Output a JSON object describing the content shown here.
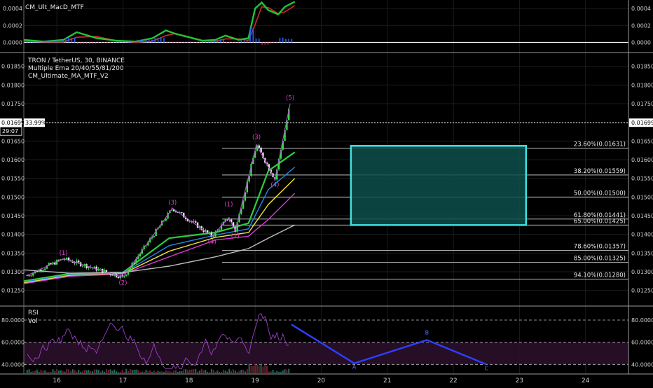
{
  "chart_data": {
    "type": "line",
    "panels": {
      "macd": {
        "title": "CM_Ult_MacD_MTF",
        "yticks": [
          "0.0004",
          "0.0002",
          "0.0000"
        ],
        "ylim": [
          -0.00012,
          0.0005
        ]
      },
      "price": {
        "title": "TRON / TetherUS, 30, BINANCE",
        "indicators": [
          "Multiple Ema 20/40/55/81/200",
          "CM_Ultimate_MA_MTF_V2"
        ],
        "yticks": [
          "0.01850",
          "0.01800",
          "0.01750",
          "0.01700",
          "0.01650",
          "0.01600",
          "0.01550",
          "0.01500",
          "0.01450",
          "0.01400",
          "0.01350",
          "0.01300",
          "0.01250"
        ],
        "ylim": [
          0.0121,
          0.01885
        ],
        "last_price": "0.01699",
        "last_change": "33.99%",
        "countdown": "29:07",
        "fib_levels": [
          {
            "label": "23.60%(0.01631)",
            "value": 0.01631
          },
          {
            "label": "38.20%(0.01559)",
            "value": 0.01559
          },
          {
            "label": "50.00%(0.01500)",
            "value": 0.015
          },
          {
            "label": "61.80%(0.01441)",
            "value": 0.01441
          },
          {
            "label": "65.00%(0.01425)",
            "value": 0.01425
          },
          {
            "label": "78.60%(0.01357)",
            "value": 0.01357
          },
          {
            "label": "85.00%(0.01325)",
            "value": 0.01325
          },
          {
            "label": "94.10%(0.01280)",
            "value": 0.0128
          }
        ],
        "target_zone": {
          "x_from": 20.45,
          "x_to": 23.1,
          "y_from": 0.01425,
          "y_to": 0.01637
        },
        "wave_labels": [
          {
            "text": "(1)",
            "x": 16.1,
            "y": 0.01345
          },
          {
            "text": "(2)",
            "x": 17.0,
            "y": 0.01265
          },
          {
            "text": "(3)",
            "x": 17.75,
            "y": 0.0148
          },
          {
            "text": "(4)",
            "x": 18.35,
            "y": 0.01375
          },
          {
            "text": "(1)",
            "x": 18.6,
            "y": 0.01475
          },
          {
            "text": "(2)",
            "x": 18.7,
            "y": 0.0139
          },
          {
            "text": "(3)",
            "x": 19.02,
            "y": 0.01655
          },
          {
            "text": "(4)",
            "x": 19.3,
            "y": 0.01528
          },
          {
            "text": "(5)",
            "x": 19.53,
            "y": 0.0176
          }
        ],
        "wave_path": [
          {
            "x": 15.55,
            "y": 0.0129
          },
          {
            "x": 16.1,
            "y": 0.01335
          },
          {
            "x": 17.0,
            "y": 0.01285
          },
          {
            "x": 17.75,
            "y": 0.0147
          },
          {
            "x": 18.35,
            "y": 0.01395
          },
          {
            "x": 18.6,
            "y": 0.01445
          },
          {
            "x": 18.7,
            "y": 0.0141
          },
          {
            "x": 19.02,
            "y": 0.0164
          },
          {
            "x": 19.3,
            "y": 0.01548
          },
          {
            "x": 19.53,
            "y": 0.0175
          }
        ],
        "ema_series": [
          {
            "color": "#2ecc40",
            "points": [
              [
                15.5,
                0.01275
              ],
              [
                16.2,
                0.01295
              ],
              [
                17.0,
                0.01298
              ],
              [
                17.7,
                0.0139
              ],
              [
                18.4,
                0.01405
              ],
              [
                18.9,
                0.0143
              ],
              [
                19.2,
                0.0157
              ],
              [
                19.6,
                0.0162
              ]
            ]
          },
          {
            "color": "#1e88e5",
            "points": [
              [
                15.5,
                0.01272
              ],
              [
                16.2,
                0.01292
              ],
              [
                17.0,
                0.01296
              ],
              [
                17.7,
                0.0137
              ],
              [
                18.4,
                0.01398
              ],
              [
                18.9,
                0.01415
              ],
              [
                19.2,
                0.0152
              ],
              [
                19.6,
                0.0158
              ]
            ]
          },
          {
            "color": "#f0e442",
            "points": [
              [
                15.5,
                0.0127
              ],
              [
                16.2,
                0.0129
              ],
              [
                17.0,
                0.01295
              ],
              [
                17.7,
                0.01355
              ],
              [
                18.4,
                0.01392
              ],
              [
                18.9,
                0.01405
              ],
              [
                19.2,
                0.0148
              ],
              [
                19.6,
                0.0155
              ]
            ]
          },
          {
            "color": "#d23ad2",
            "points": [
              [
                15.5,
                0.01268
              ],
              [
                16.2,
                0.01288
              ],
              [
                17.0,
                0.01294
              ],
              [
                17.7,
                0.0134
              ],
              [
                18.4,
                0.01385
              ],
              [
                18.9,
                0.01395
              ],
              [
                19.2,
                0.0144
              ],
              [
                19.6,
                0.0151
              ]
            ]
          },
          {
            "color": "#bdbdbd",
            "points": [
              [
                15.5,
                0.01305
              ],
              [
                16.2,
                0.01296
              ],
              [
                17.0,
                0.01298
              ],
              [
                17.7,
                0.01315
              ],
              [
                18.4,
                0.0134
              ],
              [
                18.9,
                0.01362
              ],
              [
                19.2,
                0.0139
              ],
              [
                19.6,
                0.01425
              ]
            ]
          }
        ]
      },
      "rsi": {
        "title": "RSI",
        "subtitle": "Vol",
        "yticks": [
          "80.0000",
          "60.0000",
          "40.0000"
        ],
        "ylim": [
          32,
          92
        ],
        "abc_path": [
          {
            "x": 19.55,
            "y": 76
          },
          {
            "x": 20.5,
            "y": 41
          },
          {
            "x": 21.6,
            "y": 62
          },
          {
            "x": 22.5,
            "y": 40
          }
        ],
        "abc_labels": [
          {
            "text": "A",
            "x": 20.5,
            "y": 36
          },
          {
            "text": "B",
            "x": 21.6,
            "y": 67
          },
          {
            "text": "C",
            "x": 22.5,
            "y": 35
          }
        ]
      }
    },
    "xaxis": {
      "ticks": [
        "16",
        "17",
        "18",
        "19",
        "20",
        "21",
        "22",
        "23",
        "24"
      ],
      "xlim": [
        15.5,
        24.65
      ]
    }
  }
}
